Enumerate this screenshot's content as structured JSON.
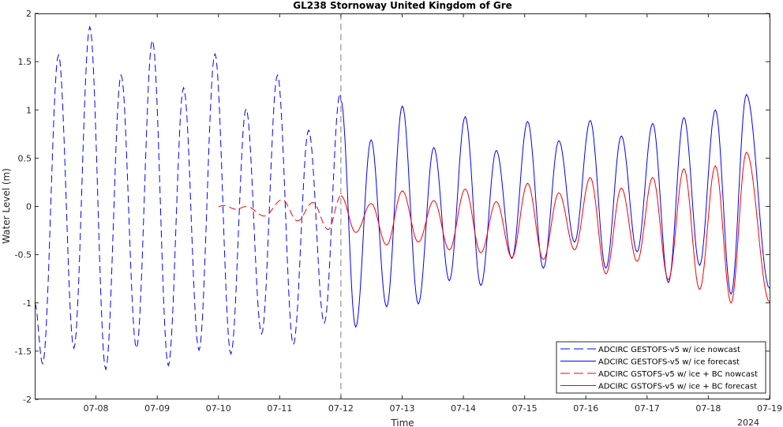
{
  "chart_data": {
    "type": "line",
    "title": "GL238 Stornoway United Kingdom of Gre",
    "xlabel": "Time",
    "ylabel": "Water Level (m)",
    "year_label": "2024",
    "x_start": "2024-07-07",
    "x_end": "2024-07-19",
    "ylim": [
      -2,
      2
    ],
    "y_ticks": [
      -2,
      -1.5,
      -1,
      -0.5,
      0,
      0.5,
      1,
      1.5,
      2
    ],
    "y_tick_labels": [
      "-2",
      "-1.5",
      "-1",
      "-0.5",
      "0",
      "0.5",
      "1",
      "1.5",
      "2"
    ],
    "x_tick_dates": [
      "2024-07-08",
      "2024-07-09",
      "2024-07-10",
      "2024-07-11",
      "2024-07-12",
      "2024-07-13",
      "2024-07-14",
      "2024-07-15",
      "2024-07-16",
      "2024-07-17",
      "2024-07-18",
      "2024-07-19"
    ],
    "x_tick_labels": [
      "07-08",
      "07-09",
      "07-10",
      "07-11",
      "07-12",
      "07-13",
      "07-14",
      "07-15",
      "07-16",
      "07-17",
      "07-18",
      "07-19"
    ],
    "forecast_start": "2024-07-12",
    "grid": false,
    "legend_position": "bottom-right",
    "series": [
      {
        "name": "ADCIRC GESTOFS-v5 w/ ice nowcast",
        "color": "#0000ff",
        "dash": true,
        "extrema": [
          [
            "2024-07-07 00:00",
            -1.0
          ],
          [
            "2024-07-07 03:07",
            -1.63
          ],
          [
            "2024-07-07 09:20",
            1.57
          ],
          [
            "2024-07-07 15:20",
            -1.47
          ],
          [
            "2024-07-07 21:36",
            1.86
          ],
          [
            "2024-07-08 03:50",
            -1.69
          ],
          [
            "2024-07-08 09:50",
            1.36
          ],
          [
            "2024-07-08 15:52",
            -1.47
          ],
          [
            "2024-07-08 22:07",
            1.72
          ],
          [
            "2024-07-09 04:22",
            -1.65
          ],
          [
            "2024-07-09 10:20",
            1.23
          ],
          [
            "2024-07-09 16:23",
            -1.49
          ],
          [
            "2024-07-09 22:38",
            1.58
          ],
          [
            "2024-07-10 04:52",
            -1.53
          ],
          [
            "2024-07-10 10:50",
            1.01
          ],
          [
            "2024-07-10 16:55",
            -1.32
          ],
          [
            "2024-07-10 23:08",
            1.36
          ],
          [
            "2024-07-11 05:22",
            -1.43
          ],
          [
            "2024-07-11 11:20",
            0.79
          ],
          [
            "2024-07-11 17:28",
            -1.21
          ],
          [
            "2024-07-11 23:40",
            1.17
          ],
          [
            "2024-07-12 00:00",
            1.1
          ]
        ]
      },
      {
        "name": "ADCIRC GESTOFS-v5 w/ ice forecast",
        "color": "#0000ff",
        "dash": false,
        "extrema": [
          [
            "2024-07-12 00:00",
            1.1
          ],
          [
            "2024-07-12 05:48",
            -1.25
          ],
          [
            "2024-07-12 11:48",
            0.69
          ],
          [
            "2024-07-12 17:55",
            -1.04
          ],
          [
            "2024-07-13 00:05",
            1.04
          ],
          [
            "2024-07-13 06:20",
            -1.01
          ],
          [
            "2024-07-13 12:25",
            0.61
          ],
          [
            "2024-07-13 18:30",
            -0.77
          ],
          [
            "2024-07-14 00:43",
            0.93
          ],
          [
            "2024-07-14 06:50",
            -0.82
          ],
          [
            "2024-07-14 12:55",
            0.58
          ],
          [
            "2024-07-14 19:00",
            -0.54
          ],
          [
            "2024-07-15 01:10",
            0.88
          ],
          [
            "2024-07-15 07:20",
            -0.64
          ],
          [
            "2024-07-15 13:25",
            0.68
          ],
          [
            "2024-07-15 19:35",
            -0.37
          ],
          [
            "2024-07-16 01:43",
            0.89
          ],
          [
            "2024-07-16 07:50",
            -0.64
          ],
          [
            "2024-07-16 13:55",
            0.73
          ],
          [
            "2024-07-16 20:05",
            -0.47
          ],
          [
            "2024-07-17 02:12",
            0.86
          ],
          [
            "2024-07-17 08:20",
            -0.79
          ],
          [
            "2024-07-17 14:25",
            0.92
          ],
          [
            "2024-07-17 20:35",
            -0.61
          ],
          [
            "2024-07-18 02:45",
            1.0
          ],
          [
            "2024-07-18 08:55",
            -0.91
          ],
          [
            "2024-07-18 14:55",
            1.16
          ],
          [
            "2024-07-19 00:00",
            -0.85
          ]
        ]
      },
      {
        "name": "ADCIRC GSTOFS-v5 w/ ice + BC nowcast",
        "color": "#ff0000",
        "dash": true,
        "extrema": [
          [
            "2024-07-10 00:00",
            0.0
          ],
          [
            "2024-07-10 02:00",
            0.01
          ],
          [
            "2024-07-10 07:00",
            -0.03
          ],
          [
            "2024-07-10 11:00",
            0.0
          ],
          [
            "2024-07-10 18:00",
            -0.1
          ],
          [
            "2024-07-11 01:00",
            0.07
          ],
          [
            "2024-07-11 07:00",
            -0.15
          ],
          [
            "2024-07-11 13:00",
            0.04
          ],
          [
            "2024-07-11 19:00",
            -0.24
          ],
          [
            "2024-07-12 00:00",
            0.11
          ]
        ]
      },
      {
        "name": "ADCIRC GSTOFS-v5 w/ ice + BC forecast",
        "color": "#ff0000",
        "dash": false,
        "extrema": [
          [
            "2024-07-12 00:00",
            0.11
          ],
          [
            "2024-07-12 05:50",
            -0.27
          ],
          [
            "2024-07-12 11:50",
            0.03
          ],
          [
            "2024-07-12 17:55",
            -0.4
          ],
          [
            "2024-07-13 00:05",
            0.16
          ],
          [
            "2024-07-13 06:20",
            -0.37
          ],
          [
            "2024-07-13 12:25",
            0.06
          ],
          [
            "2024-07-13 18:30",
            -0.45
          ],
          [
            "2024-07-14 00:43",
            0.18
          ],
          [
            "2024-07-14 06:50",
            -0.48
          ],
          [
            "2024-07-14 12:55",
            0.05
          ],
          [
            "2024-07-14 19:00",
            -0.53
          ],
          [
            "2024-07-15 01:10",
            0.24
          ],
          [
            "2024-07-15 07:20",
            -0.55
          ],
          [
            "2024-07-15 13:25",
            0.14
          ],
          [
            "2024-07-15 19:35",
            -0.45
          ],
          [
            "2024-07-16 01:43",
            0.3
          ],
          [
            "2024-07-16 07:50",
            -0.7
          ],
          [
            "2024-07-16 13:55",
            0.19
          ],
          [
            "2024-07-16 20:05",
            -0.57
          ],
          [
            "2024-07-17 02:12",
            0.3
          ],
          [
            "2024-07-17 08:20",
            -0.76
          ],
          [
            "2024-07-17 14:25",
            0.39
          ],
          [
            "2024-07-17 20:35",
            -0.86
          ],
          [
            "2024-07-18 02:45",
            0.42
          ],
          [
            "2024-07-18 08:55",
            -1.0
          ],
          [
            "2024-07-18 14:55",
            0.56
          ],
          [
            "2024-07-19 00:00",
            -0.99
          ]
        ]
      }
    ]
  }
}
